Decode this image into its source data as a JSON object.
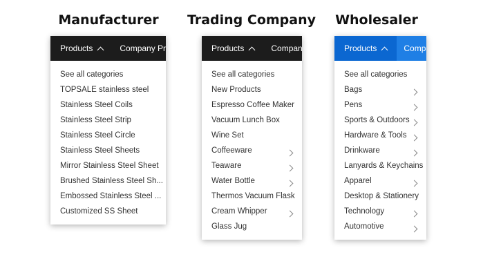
{
  "panels": [
    {
      "title": "Manufacturer",
      "products_label": "Products",
      "other_tab": "Company Profile",
      "header_color": "#1c1c1c",
      "items": [
        {
          "label": "See all categories",
          "submenu": false
        },
        {
          "label": "TOPSALE stainless steel",
          "submenu": false
        },
        {
          "label": "Stainless Steel Coils",
          "submenu": false
        },
        {
          "label": "Stainless Steel Strip",
          "submenu": false
        },
        {
          "label": "Stainless Steel Circle",
          "submenu": false
        },
        {
          "label": "Stainless Steel Sheets",
          "submenu": false
        },
        {
          "label": "Mirror Stainless Steel Sheet",
          "submenu": false
        },
        {
          "label": "Brushed Stainless Steel Sh...",
          "submenu": false
        },
        {
          "label": "Embossed Stainless Steel ...",
          "submenu": false
        },
        {
          "label": "Customized SS Sheet",
          "submenu": false
        }
      ]
    },
    {
      "title": "Trading Company",
      "products_label": "Products",
      "other_tab": "Company",
      "header_color": "#1c1c1c",
      "items": [
        {
          "label": "See all categories",
          "submenu": false
        },
        {
          "label": "New Products",
          "submenu": false
        },
        {
          "label": "Espresso Coffee Maker",
          "submenu": false
        },
        {
          "label": "Vacuum Lunch Box",
          "submenu": false
        },
        {
          "label": "Wine Set",
          "submenu": false
        },
        {
          "label": "Coffeeware",
          "submenu": true
        },
        {
          "label": "Teaware",
          "submenu": true
        },
        {
          "label": "Water Bottle",
          "submenu": true
        },
        {
          "label": "Thermos Vacuum Flask",
          "submenu": false
        },
        {
          "label": "Cream Whipper",
          "submenu": true
        },
        {
          "label": "Glass Jug",
          "submenu": false
        }
      ]
    },
    {
      "title": "Wholesaler",
      "products_label": "Products",
      "other_tab": "Compan",
      "header_color": "#0b67d1",
      "header_color_other": "#1f7fe5",
      "items": [
        {
          "label": "See all categories",
          "submenu": false
        },
        {
          "label": "Bags",
          "submenu": true
        },
        {
          "label": "Pens",
          "submenu": true
        },
        {
          "label": "Sports & Outdoors",
          "submenu": true
        },
        {
          "label": "Hardware & Tools",
          "submenu": true
        },
        {
          "label": "Drinkware",
          "submenu": true
        },
        {
          "label": "Lanyards & Keychains",
          "submenu": false
        },
        {
          "label": "Apparel",
          "submenu": true
        },
        {
          "label": "Desktop & Stationery",
          "submenu": false
        },
        {
          "label": "Technology",
          "submenu": true
        },
        {
          "label": "Automotive",
          "submenu": true
        }
      ]
    }
  ]
}
